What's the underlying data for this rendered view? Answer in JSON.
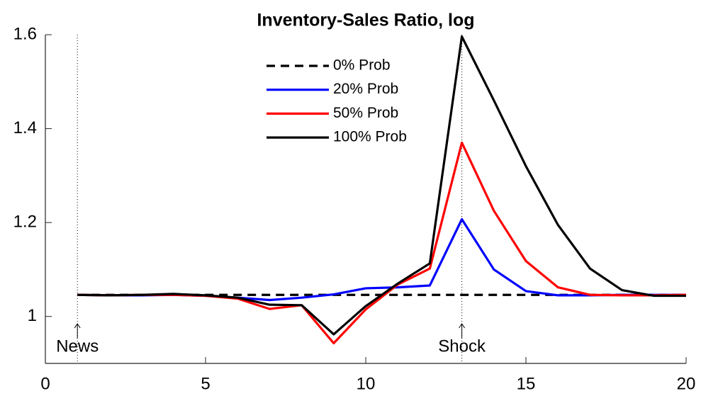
{
  "chart_data": {
    "type": "line",
    "title": "Inventory-Sales Ratio, log",
    "x": [
      1,
      2,
      3,
      4,
      5,
      6,
      7,
      8,
      9,
      10,
      11,
      12,
      13,
      14,
      15,
      16,
      17,
      18,
      19,
      20
    ],
    "xlim": [
      0,
      20
    ],
    "xticks": [
      0,
      5,
      10,
      15,
      20
    ],
    "ylim": [
      0.9,
      1.6
    ],
    "yticks": [
      1,
      1.2,
      1.4,
      1.6
    ],
    "series": [
      {
        "name": "0% Prob",
        "color": "#000000",
        "line_style": "dashed",
        "values": [
          1.046,
          1.046,
          1.046,
          1.046,
          1.046,
          1.046,
          1.046,
          1.046,
          1.046,
          1.046,
          1.046,
          1.046,
          1.046,
          1.046,
          1.046,
          1.046,
          1.046,
          1.046,
          1.046,
          1.046
        ]
      },
      {
        "name": "20% Prob",
        "color": "#0000ff",
        "line_style": "solid",
        "values": [
          1.046,
          1.045,
          1.045,
          1.046,
          1.044,
          1.04,
          1.035,
          1.04,
          1.047,
          1.06,
          1.062,
          1.066,
          1.207,
          1.1,
          1.054,
          1.045,
          1.045,
          1.046,
          1.046,
          1.046
        ]
      },
      {
        "name": "50% Prob",
        "color": "#ff0000",
        "line_style": "solid",
        "values": [
          1.046,
          1.045,
          1.046,
          1.046,
          1.044,
          1.038,
          1.016,
          1.024,
          0.943,
          1.015,
          1.068,
          1.102,
          1.37,
          1.225,
          1.118,
          1.062,
          1.046,
          1.045,
          1.045,
          1.046
        ]
      },
      {
        "name": "100% Prob",
        "color": "#000000",
        "line_style": "solid",
        "values": [
          1.046,
          1.045,
          1.046,
          1.048,
          1.045,
          1.04,
          1.025,
          1.024,
          0.962,
          1.022,
          1.07,
          1.113,
          1.596,
          1.46,
          1.32,
          1.195,
          1.102,
          1.056,
          1.044,
          1.044
        ]
      }
    ],
    "annotations": [
      {
        "text": "News",
        "x": 1
      },
      {
        "text": "Shock",
        "x": 13
      }
    ]
  }
}
